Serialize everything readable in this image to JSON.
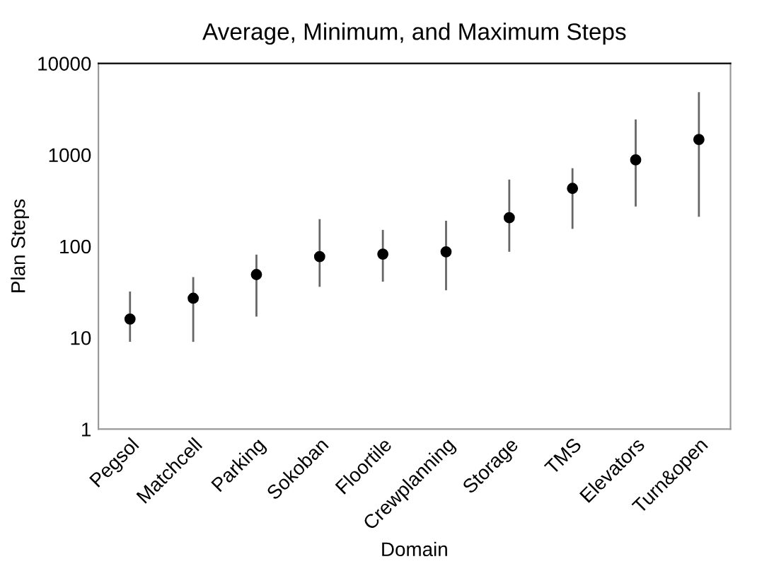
{
  "chart_data": {
    "type": "scatter",
    "title": "Average, Minimum, and Maximum Steps",
    "xlabel": "Domain",
    "ylabel": "Plan Steps",
    "categories": [
      "Pegsol",
      "Matchcell",
      "Parking",
      "Sokoban",
      "Floortile",
      "Crewplanning",
      "Storage",
      "TMS",
      "Elevators",
      "Turn&open"
    ],
    "series": [
      {
        "color": "#000000",
        "values": [
          16,
          27,
          49,
          77,
          82,
          87,
          205,
          429,
          880,
          1470
        ],
        "errors": [
          [
            9,
            32
          ],
          [
            9,
            46
          ],
          [
            17,
            81
          ],
          [
            36,
            198
          ],
          [
            41,
            151
          ],
          [
            33,
            190
          ],
          [
            87,
            535
          ],
          [
            155,
            713
          ],
          [
            272,
            2440
          ],
          [
            210,
            4850
          ]
        ]
      }
    ],
    "log": true,
    "ylim": [
      1,
      10000
    ],
    "yticks": [
      1,
      10,
      100,
      1000,
      10000
    ],
    "grid": false,
    "legend": false,
    "marker": "circle"
  }
}
